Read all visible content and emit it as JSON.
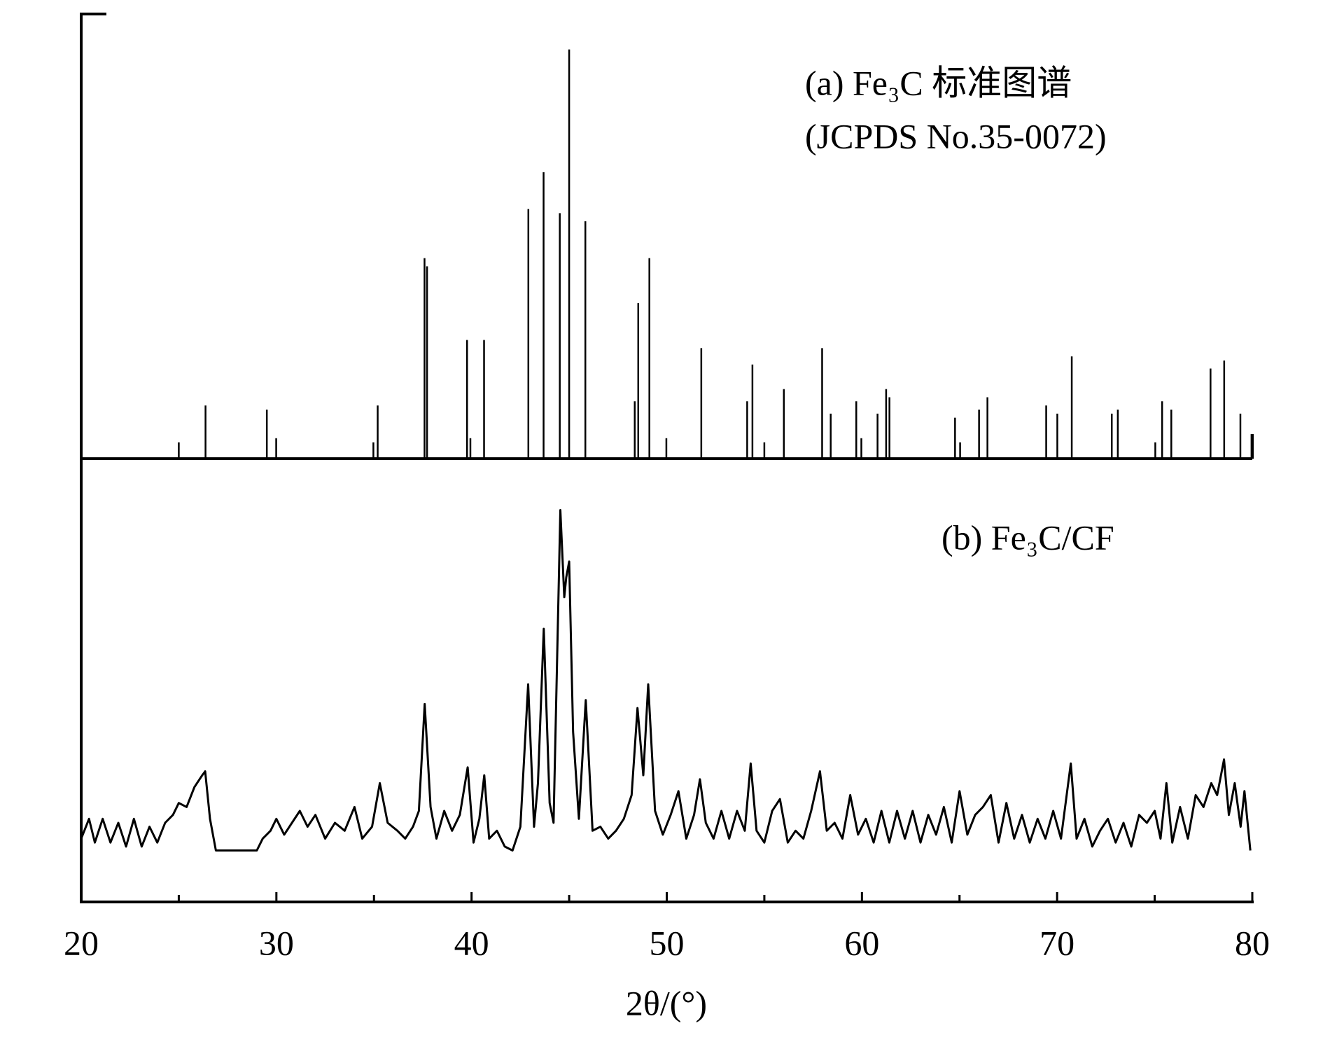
{
  "chart_data": [
    {
      "type": "stem",
      "annotations": [
        "(a) Fe₃C 标准图谱",
        "(JCPDS No.35-0072)"
      ],
      "xlim": [
        20,
        80
      ],
      "ylim": [
        0,
        109
      ],
      "color": "#000000",
      "x": [
        25.0,
        26.37,
        29.51,
        29.99,
        34.97,
        35.19,
        37.59,
        37.72,
        39.77,
        39.94,
        40.64,
        42.91,
        43.69,
        44.52,
        45.0,
        45.83,
        48.36,
        48.54,
        49.11,
        49.98,
        51.77,
        54.12,
        54.39,
        55.0,
        56.0,
        57.96,
        58.4,
        59.71,
        59.97,
        60.8,
        61.24,
        61.41,
        64.77,
        65.03,
        66.0,
        66.43,
        69.44,
        70.01,
        70.75,
        72.8,
        73.11,
        75.03,
        75.38,
        75.85,
        77.86,
        78.56,
        79.39,
        79.96
      ],
      "values": [
        4,
        13,
        12,
        5,
        4,
        13,
        49,
        47,
        29,
        5,
        29,
        61,
        70,
        60,
        100,
        58,
        14,
        38,
        49,
        5,
        27,
        14,
        23,
        4,
        17,
        27,
        11,
        14,
        5,
        11,
        17,
        15,
        10,
        4,
        12,
        15,
        13,
        11,
        25,
        11,
        12,
        4,
        14,
        12,
        22,
        24,
        11,
        6
      ]
    },
    {
      "type": "line",
      "annotations": [
        "(b) Fe₃C/CF"
      ],
      "xlabel": "2θ/(°)",
      "xlim": [
        20,
        80
      ],
      "ylim": [
        0,
        112
      ],
      "color": "#000000",
      "xticks": [
        20,
        30,
        40,
        50,
        60,
        70,
        80
      ],
      "xminorticks": [
        25,
        35,
        45,
        55,
        65,
        75
      ],
      "x": [
        20.0,
        20.4,
        20.7,
        21.1,
        21.5,
        21.9,
        22.3,
        22.7,
        23.1,
        23.5,
        23.9,
        24.3,
        24.7,
        25.0,
        25.4,
        25.8,
        26.2,
        26.35,
        26.6,
        26.9,
        27.5,
        28.5,
        29.0,
        29.3,
        29.7,
        30.0,
        30.4,
        30.8,
        31.2,
        31.6,
        32.0,
        32.5,
        33.0,
        33.5,
        34.0,
        34.4,
        34.9,
        35.3,
        35.7,
        36.2,
        36.6,
        37.0,
        37.3,
        37.6,
        37.9,
        38.2,
        38.6,
        39.0,
        39.4,
        39.8,
        40.1,
        40.4,
        40.65,
        40.9,
        41.3,
        41.7,
        42.1,
        42.5,
        42.9,
        43.2,
        43.4,
        43.7,
        44.0,
        44.2,
        44.55,
        44.75,
        44.85,
        45.0,
        45.2,
        45.5,
        45.85,
        46.2,
        46.6,
        47.0,
        47.4,
        47.8,
        48.2,
        48.5,
        48.8,
        49.05,
        49.4,
        49.8,
        50.2,
        50.6,
        51.0,
        51.4,
        51.7,
        52.0,
        52.4,
        52.8,
        53.2,
        53.6,
        54.0,
        54.3,
        54.6,
        55.0,
        55.4,
        55.8,
        56.2,
        56.6,
        57.0,
        57.4,
        57.85,
        58.2,
        58.6,
        59.0,
        59.4,
        59.8,
        60.2,
        60.6,
        61.0,
        61.4,
        61.8,
        62.2,
        62.6,
        63.0,
        63.4,
        63.8,
        64.2,
        64.6,
        65.0,
        65.4,
        65.8,
        66.2,
        66.6,
        67.0,
        67.4,
        67.8,
        68.2,
        68.6,
        69.0,
        69.4,
        69.8,
        70.2,
        70.7,
        71.0,
        71.4,
        71.8,
        72.2,
        72.6,
        73.0,
        73.4,
        73.8,
        74.2,
        74.6,
        75.0,
        75.3,
        75.6,
        75.9,
        76.3,
        76.7,
        77.1,
        77.5,
        77.9,
        78.2,
        78.55,
        78.8,
        79.1,
        79.4,
        79.6,
        79.9
      ],
      "values": [
        16,
        21,
        15,
        21,
        15,
        20,
        14,
        21,
        14,
        19,
        15,
        20,
        22,
        25,
        24,
        29,
        32,
        33,
        21,
        13,
        13,
        13,
        13,
        16,
        18,
        21,
        17,
        20,
        23,
        19,
        22,
        16,
        20,
        18,
        24,
        16,
        19,
        30,
        20,
        18,
        16,
        19,
        23,
        50,
        24,
        16,
        23,
        18,
        22,
        34,
        15,
        21,
        32,
        16,
        18,
        14,
        13,
        19,
        55,
        19,
        30,
        69,
        25,
        20,
        99,
        77,
        82,
        86,
        43,
        21,
        51,
        18,
        19,
        16,
        18,
        21,
        27,
        49,
        32,
        55,
        23,
        17,
        22,
        28,
        16,
        22,
        31,
        20,
        16,
        23,
        16,
        23,
        18,
        35,
        18,
        15,
        23,
        26,
        15,
        18,
        16,
        23,
        33,
        18,
        20,
        16,
        27,
        17,
        21,
        15,
        23,
        15,
        23,
        16,
        23,
        15,
        22,
        17,
        24,
        15,
        28,
        17,
        22,
        24,
        27,
        15,
        25,
        16,
        22,
        15,
        21,
        16,
        23,
        16,
        35,
        16,
        21,
        14,
        18,
        21,
        15,
        20,
        14,
        22,
        20,
        23,
        16,
        30,
        15,
        24,
        16,
        27,
        24,
        30,
        27,
        36,
        22,
        30,
        19,
        28,
        13
      ]
    }
  ]
}
